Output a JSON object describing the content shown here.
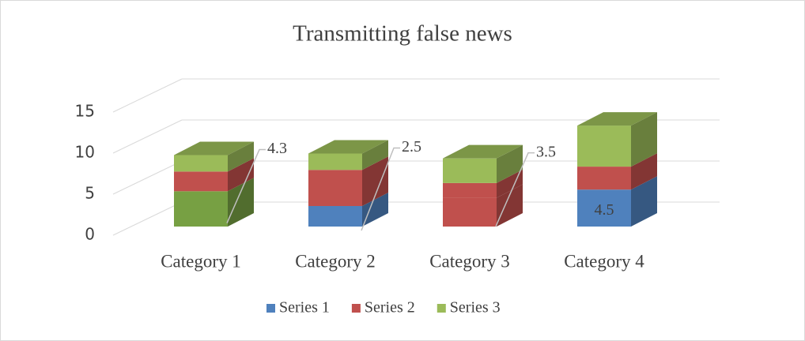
{
  "chart_data": {
    "type": "bar3d_stacked",
    "title": "Transmitting false news",
    "categories": [
      "Category 1",
      "Category 2",
      "Category 3",
      "Category 4"
    ],
    "series": [
      {
        "name": "Series 1",
        "color": "#4f81bd",
        "point_colors": [
          "#77a043",
          "#4f81bd",
          "#c0504d",
          "#4f81bd"
        ],
        "values": [
          4.3,
          2.5,
          3.5,
          4.5
        ]
      },
      {
        "name": "Series 2",
        "color": "#c0504d",
        "values": [
          2.4,
          4.4,
          1.8,
          2.8
        ]
      },
      {
        "name": "Series 3",
        "color": "#9bbb59",
        "values": [
          2,
          2,
          3,
          5
        ]
      }
    ],
    "data_labels_series": 0,
    "ylim": [
      0,
      15
    ],
    "yticks": [
      0,
      5,
      10,
      15
    ],
    "grid": true,
    "legend": "bottom"
  }
}
